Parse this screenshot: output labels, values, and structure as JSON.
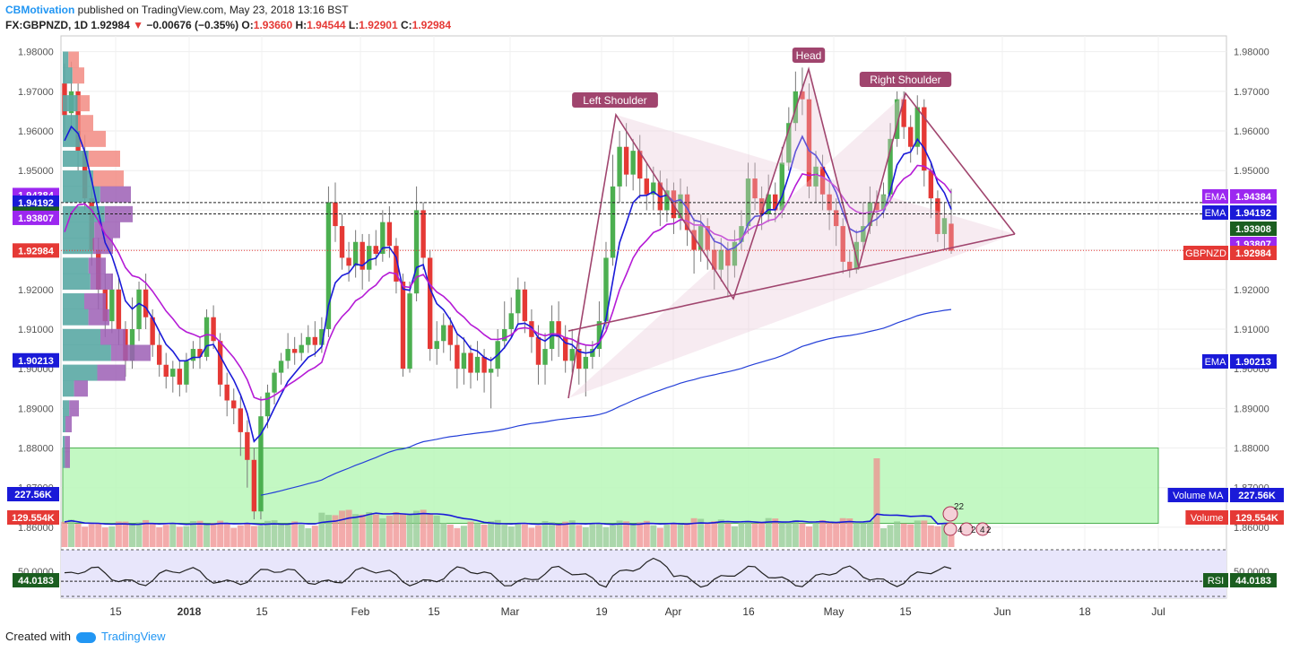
{
  "header": {
    "author": "CBMotivation",
    "published": "published on TradingView.com, May 23, 2018 13:16 BST",
    "symbol": "FX:GBPNZD, 1D",
    "last": "1.92984",
    "change_arrow": "▼",
    "change": "−0.00676 (−0.35%)",
    "o_label": "O:",
    "o": "1.93660",
    "h_label": "H:",
    "h": "1.94544",
    "l_label": "L:",
    "l": "1.92901",
    "c_label": "C:",
    "c": "1.92984"
  },
  "footer": {
    "created_with": "Created with",
    "brand": "TradingView"
  },
  "colors": {
    "up": "#4caf50",
    "down": "#e53935",
    "ema_fast": "#1a1ad8",
    "ema_mid": "#b51bd6",
    "ema_slow": "#2540d8",
    "pattern": "#a0456e",
    "zone": "#b9f7b9",
    "rsi_bg": "#e8e6fb"
  },
  "chart_data": {
    "type": "candlestick",
    "title": "",
    "ylim": [
      1.855,
      1.984
    ],
    "y_ticks": [
      "1.98000",
      "1.97000",
      "1.96000",
      "1.95000",
      "1.94000",
      "1.93000",
      "1.92000",
      "1.91000",
      "1.90000",
      "1.89000",
      "1.88000",
      "1.87000",
      "1.86000"
    ],
    "x_ticks": [
      "15",
      "2018",
      "15",
      "Feb",
      "15",
      "Mar",
      "19",
      "Apr",
      "16",
      "May",
      "15",
      "Jun",
      "18",
      "Jul"
    ],
    "price_labels": [
      {
        "text": "1.94384",
        "value": 1.94384,
        "color": "#9c27f0"
      },
      {
        "text": "1.94192",
        "value": 1.94192,
        "color": "#1a1ad8"
      },
      {
        "text": "1.93908",
        "value": 1.93908,
        "color": "#1b5e20"
      },
      {
        "text": "1.93807",
        "value": 1.93807,
        "color": "#9c27f0"
      },
      {
        "text": "1.92984",
        "value": 1.92984,
        "color": "#e53935"
      },
      {
        "text": "1.90213",
        "value": 1.90213,
        "color": "#1a1ad8"
      }
    ],
    "right_tags": [
      {
        "name": "EMA",
        "value": "1.94384",
        "color": "#9c27f0"
      },
      {
        "name": "EMA",
        "value": "1.94192",
        "color": "#1a1ad8"
      },
      {
        "name": "",
        "value": "1.93908",
        "color": "#1b5e20"
      },
      {
        "name": "",
        "value": "1.93807",
        "color": "#9c27f0"
      },
      {
        "name": "GBPNZD",
        "value": "1.92984",
        "color": "#e53935"
      },
      {
        "name": "EMA",
        "value": "1.90213",
        "color": "#1a1ad8"
      }
    ],
    "pattern_labels": [
      "Left Shoulder",
      "Head",
      "Right Shoulder"
    ],
    "volume": {
      "left_labels": [
        {
          "text": "227.56K",
          "color": "#1a1ad8"
        },
        {
          "text": "129.554K",
          "color": "#e53935"
        }
      ],
      "right_tags": [
        {
          "name": "Volume MA",
          "value": "227.56K",
          "color": "#1a1ad8"
        },
        {
          "name": "Volume",
          "value": "129.554K",
          "color": "#e53935"
        }
      ],
      "icons": [
        "22",
        "4",
        "2",
        "4",
        "2"
      ]
    },
    "rsi": {
      "value": "44.0183",
      "name": "RSI",
      "tick": "50.0000",
      "level": 44.0183
    },
    "candles": [
      {
        "o": 1.972,
        "c": 1.964,
        "h": 1.977,
        "l": 1.959
      },
      {
        "o": 1.9645,
        "c": 1.97,
        "h": 1.9775,
        "l": 1.96
      },
      {
        "o": 1.97,
        "c": 1.955,
        "h": 1.972,
        "l": 1.95
      },
      {
        "o": 1.955,
        "c": 1.943,
        "h": 1.959,
        "l": 1.94
      },
      {
        "o": 1.943,
        "c": 1.93,
        "h": 1.946,
        "l": 1.926
      },
      {
        "o": 1.93,
        "c": 1.92,
        "h": 1.933,
        "l": 1.915
      },
      {
        "o": 1.92,
        "c": 1.912,
        "h": 1.924,
        "l": 1.908
      },
      {
        "o": 1.912,
        "c": 1.92,
        "h": 1.924,
        "l": 1.909
      },
      {
        "o": 1.92,
        "c": 1.91,
        "h": 1.923,
        "l": 1.906
      },
      {
        "o": 1.91,
        "c": 1.902,
        "h": 1.912,
        "l": 1.898
      },
      {
        "o": 1.902,
        "c": 1.91,
        "h": 1.918,
        "l": 1.9
      },
      {
        "o": 1.91,
        "c": 1.92,
        "h": 1.922,
        "l": 1.907
      },
      {
        "o": 1.92,
        "c": 1.913,
        "h": 1.924,
        "l": 1.91
      },
      {
        "o": 1.913,
        "c": 1.906,
        "h": 1.915,
        "l": 1.903
      },
      {
        "o": 1.906,
        "c": 1.901,
        "h": 1.909,
        "l": 1.898
      },
      {
        "o": 1.901,
        "c": 1.898,
        "h": 1.904,
        "l": 1.895
      },
      {
        "o": 1.898,
        "c": 1.9,
        "h": 1.902,
        "l": 1.894
      },
      {
        "o": 1.9,
        "c": 1.896,
        "h": 1.902,
        "l": 1.893
      },
      {
        "o": 1.896,
        "c": 1.902,
        "h": 1.904,
        "l": 1.894
      },
      {
        "o": 1.902,
        "c": 1.905,
        "h": 1.907,
        "l": 1.9
      },
      {
        "o": 1.905,
        "c": 1.903,
        "h": 1.908,
        "l": 1.9
      },
      {
        "o": 1.903,
        "c": 1.913,
        "h": 1.915,
        "l": 1.902
      },
      {
        "o": 1.913,
        "c": 1.907,
        "h": 1.916,
        "l": 1.905
      },
      {
        "o": 1.907,
        "c": 1.896,
        "h": 1.909,
        "l": 1.893
      },
      {
        "o": 1.896,
        "c": 1.892,
        "h": 1.899,
        "l": 1.888
      },
      {
        "o": 1.892,
        "c": 1.89,
        "h": 1.895,
        "l": 1.886
      },
      {
        "o": 1.89,
        "c": 1.884,
        "h": 1.893,
        "l": 1.878
      },
      {
        "o": 1.884,
        "c": 1.877,
        "h": 1.887,
        "l": 1.87
      },
      {
        "o": 1.877,
        "c": 1.864,
        "h": 1.88,
        "l": 1.862
      },
      {
        "o": 1.864,
        "c": 1.888,
        "h": 1.893,
        "l": 1.862
      },
      {
        "o": 1.888,
        "c": 1.894,
        "h": 1.896,
        "l": 1.885
      },
      {
        "o": 1.894,
        "c": 1.899,
        "h": 1.9,
        "l": 1.891
      },
      {
        "o": 1.899,
        "c": 1.902,
        "h": 1.904,
        "l": 1.896
      },
      {
        "o": 1.902,
        "c": 1.905,
        "h": 1.909,
        "l": 1.9
      },
      {
        "o": 1.905,
        "c": 1.904,
        "h": 1.908,
        "l": 1.901
      },
      {
        "o": 1.904,
        "c": 1.906,
        "h": 1.909,
        "l": 1.902
      },
      {
        "o": 1.906,
        "c": 1.908,
        "h": 1.911,
        "l": 1.904
      },
      {
        "o": 1.908,
        "c": 1.906,
        "h": 1.912,
        "l": 1.903
      },
      {
        "o": 1.906,
        "c": 1.91,
        "h": 1.913,
        "l": 1.904
      },
      {
        "o": 1.91,
        "c": 1.942,
        "h": 1.946,
        "l": 1.908
      },
      {
        "o": 1.942,
        "c": 1.936,
        "h": 1.947,
        "l": 1.932
      },
      {
        "o": 1.936,
        "c": 1.928,
        "h": 1.939,
        "l": 1.925
      },
      {
        "o": 1.928,
        "c": 1.926,
        "h": 1.932,
        "l": 1.922
      },
      {
        "o": 1.926,
        "c": 1.932,
        "h": 1.935,
        "l": 1.923
      },
      {
        "o": 1.932,
        "c": 1.925,
        "h": 1.934,
        "l": 1.92
      },
      {
        "o": 1.925,
        "c": 1.931,
        "h": 1.934,
        "l": 1.922
      },
      {
        "o": 1.931,
        "c": 1.929,
        "h": 1.935,
        "l": 1.926
      },
      {
        "o": 1.929,
        "c": 1.937,
        "h": 1.94,
        "l": 1.927
      },
      {
        "o": 1.937,
        "c": 1.931,
        "h": 1.941,
        "l": 1.928
      },
      {
        "o": 1.931,
        "c": 1.922,
        "h": 1.933,
        "l": 1.919
      },
      {
        "o": 1.922,
        "c": 1.9,
        "h": 1.924,
        "l": 1.898
      },
      {
        "o": 1.9,
        "c": 1.919,
        "h": 1.922,
        "l": 1.899
      },
      {
        "o": 1.919,
        "c": 1.94,
        "h": 1.946,
        "l": 1.917
      },
      {
        "o": 1.94,
        "c": 1.928,
        "h": 1.942,
        "l": 1.925
      },
      {
        "o": 1.928,
        "c": 1.905,
        "h": 1.93,
        "l": 1.902
      },
      {
        "o": 1.905,
        "c": 1.907,
        "h": 1.912,
        "l": 1.901
      },
      {
        "o": 1.907,
        "c": 1.911,
        "h": 1.914,
        "l": 1.904
      },
      {
        "o": 1.911,
        "c": 1.906,
        "h": 1.913,
        "l": 1.902
      },
      {
        "o": 1.906,
        "c": 1.9,
        "h": 1.909,
        "l": 1.895
      },
      {
        "o": 1.9,
        "c": 1.904,
        "h": 1.908,
        "l": 1.896
      },
      {
        "o": 1.904,
        "c": 1.899,
        "h": 1.906,
        "l": 1.895
      },
      {
        "o": 1.899,
        "c": 1.903,
        "h": 1.907,
        "l": 1.897
      },
      {
        "o": 1.903,
        "c": 1.899,
        "h": 1.905,
        "l": 1.894
      },
      {
        "o": 1.899,
        "c": 1.9,
        "h": 1.903,
        "l": 1.89
      },
      {
        "o": 1.9,
        "c": 1.907,
        "h": 1.91,
        "l": 1.898
      },
      {
        "o": 1.907,
        "c": 1.91,
        "h": 1.917,
        "l": 1.905
      },
      {
        "o": 1.91,
        "c": 1.914,
        "h": 1.918,
        "l": 1.908
      },
      {
        "o": 1.914,
        "c": 1.92,
        "h": 1.923,
        "l": 1.911
      },
      {
        "o": 1.92,
        "c": 1.912,
        "h": 1.922,
        "l": 1.909
      },
      {
        "o": 1.912,
        "c": 1.908,
        "h": 1.915,
        "l": 1.904
      },
      {
        "o": 1.908,
        "c": 1.901,
        "h": 1.911,
        "l": 1.896
      },
      {
        "o": 1.901,
        "c": 1.905,
        "h": 1.909,
        "l": 1.896
      },
      {
        "o": 1.905,
        "c": 1.912,
        "h": 1.916,
        "l": 1.902
      },
      {
        "o": 1.912,
        "c": 1.908,
        "h": 1.917,
        "l": 1.903
      },
      {
        "o": 1.908,
        "c": 1.902,
        "h": 1.911,
        "l": 1.899
      },
      {
        "o": 1.902,
        "c": 1.905,
        "h": 1.91,
        "l": 1.899
      },
      {
        "o": 1.905,
        "c": 1.9,
        "h": 1.908,
        "l": 1.896
      },
      {
        "o": 1.9,
        "c": 1.903,
        "h": 1.906,
        "l": 1.893
      },
      {
        "o": 1.903,
        "c": 1.905,
        "h": 1.907,
        "l": 1.9
      },
      {
        "o": 1.905,
        "c": 1.912,
        "h": 1.917,
        "l": 1.903
      },
      {
        "o": 1.912,
        "c": 1.928,
        "h": 1.932,
        "l": 1.91
      },
      {
        "o": 1.928,
        "c": 1.946,
        "h": 1.954,
        "l": 1.926
      },
      {
        "o": 1.946,
        "c": 1.956,
        "h": 1.96,
        "l": 1.942
      },
      {
        "o": 1.956,
        "c": 1.949,
        "h": 1.962,
        "l": 1.946
      },
      {
        "o": 1.949,
        "c": 1.955,
        "h": 1.958,
        "l": 1.945
      },
      {
        "o": 1.955,
        "c": 1.948,
        "h": 1.959,
        "l": 1.943
      },
      {
        "o": 1.948,
        "c": 1.944,
        "h": 1.952,
        "l": 1.94
      },
      {
        "o": 1.944,
        "c": 1.947,
        "h": 1.951,
        "l": 1.94
      },
      {
        "o": 1.947,
        "c": 1.94,
        "h": 1.95,
        "l": 1.936
      },
      {
        "o": 1.94,
        "c": 1.945,
        "h": 1.948,
        "l": 1.937
      },
      {
        "o": 1.945,
        "c": 1.938,
        "h": 1.947,
        "l": 1.934
      },
      {
        "o": 1.938,
        "c": 1.944,
        "h": 1.948,
        "l": 1.935
      },
      {
        "o": 1.944,
        "c": 1.935,
        "h": 1.946,
        "l": 1.931
      },
      {
        "o": 1.935,
        "c": 1.93,
        "h": 1.938,
        "l": 1.924
      },
      {
        "o": 1.93,
        "c": 1.936,
        "h": 1.939,
        "l": 1.927
      },
      {
        "o": 1.936,
        "c": 1.93,
        "h": 1.938,
        "l": 1.925
      },
      {
        "o": 1.93,
        "c": 1.925,
        "h": 1.933,
        "l": 1.92
      },
      {
        "o": 1.925,
        "c": 1.93,
        "h": 1.933,
        "l": 1.922
      },
      {
        "o": 1.93,
        "c": 1.926,
        "h": 1.932,
        "l": 1.918
      },
      {
        "o": 1.926,
        "c": 1.932,
        "h": 1.935,
        "l": 1.923
      },
      {
        "o": 1.932,
        "c": 1.936,
        "h": 1.94,
        "l": 1.93
      },
      {
        "o": 1.936,
        "c": 1.948,
        "h": 1.952,
        "l": 1.934
      },
      {
        "o": 1.948,
        "c": 1.943,
        "h": 1.952,
        "l": 1.94
      },
      {
        "o": 1.943,
        "c": 1.939,
        "h": 1.946,
        "l": 1.935
      },
      {
        "o": 1.939,
        "c": 1.944,
        "h": 1.949,
        "l": 1.937
      },
      {
        "o": 1.944,
        "c": 1.94,
        "h": 1.947,
        "l": 1.937
      },
      {
        "o": 1.94,
        "c": 1.952,
        "h": 1.956,
        "l": 1.938
      },
      {
        "o": 1.952,
        "c": 1.962,
        "h": 1.966,
        "l": 1.95
      },
      {
        "o": 1.962,
        "c": 1.97,
        "h": 1.975,
        "l": 1.96
      },
      {
        "o": 1.97,
        "c": 1.968,
        "h": 1.976,
        "l": 1.964
      },
      {
        "o": 1.968,
        "c": 1.946,
        "h": 1.972,
        "l": 1.943
      },
      {
        "o": 1.946,
        "c": 1.951,
        "h": 1.955,
        "l": 1.942
      },
      {
        "o": 1.951,
        "c": 1.944,
        "h": 1.954,
        "l": 1.94
      },
      {
        "o": 1.944,
        "c": 1.94,
        "h": 1.947,
        "l": 1.935
      },
      {
        "o": 1.94,
        "c": 1.936,
        "h": 1.943,
        "l": 1.931
      },
      {
        "o": 1.936,
        "c": 1.927,
        "h": 1.938,
        "l": 1.924
      },
      {
        "o": 1.927,
        "c": 1.925,
        "h": 1.93,
        "l": 1.923
      },
      {
        "o": 1.925,
        "c": 1.932,
        "h": 1.935,
        "l": 1.924
      },
      {
        "o": 1.932,
        "c": 1.936,
        "h": 1.942,
        "l": 1.93
      },
      {
        "o": 1.936,
        "c": 1.942,
        "h": 1.946,
        "l": 1.934
      },
      {
        "o": 1.942,
        "c": 1.94,
        "h": 1.945,
        "l": 1.936
      },
      {
        "o": 1.94,
        "c": 1.944,
        "h": 1.947,
        "l": 1.938
      },
      {
        "o": 1.944,
        "c": 1.958,
        "h": 1.962,
        "l": 1.942
      },
      {
        "o": 1.958,
        "c": 1.968,
        "h": 1.97,
        "l": 1.956
      },
      {
        "o": 1.968,
        "c": 1.961,
        "h": 1.97,
        "l": 1.958
      },
      {
        "o": 1.961,
        "c": 1.956,
        "h": 1.964,
        "l": 1.952
      },
      {
        "o": 1.956,
        "c": 1.966,
        "h": 1.969,
        "l": 1.954
      },
      {
        "o": 1.966,
        "c": 1.95,
        "h": 1.968,
        "l": 1.946
      },
      {
        "o": 1.95,
        "c": 1.943,
        "h": 1.952,
        "l": 1.938
      },
      {
        "o": 1.943,
        "c": 1.934,
        "h": 1.945,
        "l": 1.932
      },
      {
        "o": 1.934,
        "c": 1.938,
        "h": 1.942,
        "l": 1.93
      },
      {
        "o": 1.9366,
        "c": 1.9298,
        "h": 1.9454,
        "l": 1.929
      }
    ]
  }
}
